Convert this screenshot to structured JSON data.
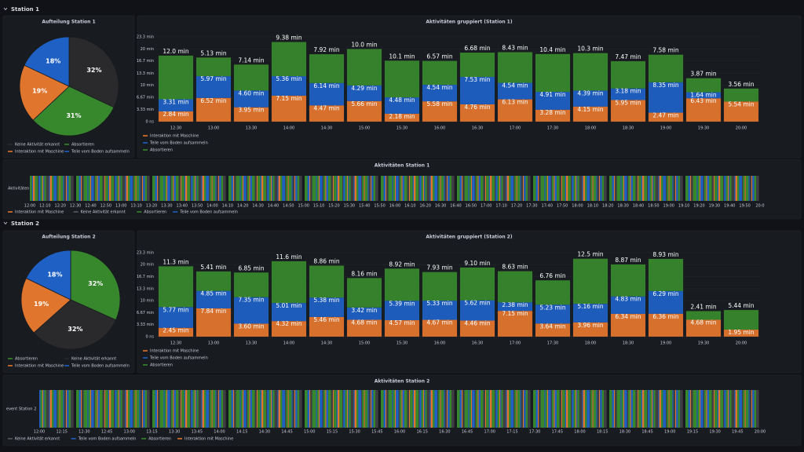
{
  "sections": [
    {
      "title": "Station 1",
      "pie": {
        "type": "pie",
        "title": "Aufteilung Station 1",
        "categories": [
          "Keine Aktivität erkannt",
          "Absortieren",
          "Interaktion mit Maschine",
          "Teile vom Boden aufsammeln"
        ],
        "values": [
          32,
          31,
          19,
          18
        ],
        "value_labels": [
          "32%",
          "31%",
          "19%",
          "18%"
        ],
        "colors": [
          "#2a2a2d",
          "#37872d",
          "#e0752d",
          "#1f60c4"
        ]
      },
      "bar": {
        "type": "bar",
        "stacked": true,
        "title": "Aktivitäten gruppiert (Station 1)",
        "categories": [
          "12:30",
          "13:00",
          "13:30",
          "14:00",
          "14:30",
          "15:00",
          "15:30",
          "16:00",
          "16:30",
          "17:00",
          "17:30",
          "18:00",
          "18:30",
          "19:00",
          "19:30",
          "20:00"
        ],
        "ylim": [
          0,
          23.3
        ],
        "yticks": [
          {
            "value": 0,
            "label": "0 ns"
          },
          {
            "value": 3.33,
            "label": "3.33 min"
          },
          {
            "value": 6.67,
            "label": "6.67 min"
          },
          {
            "value": 10,
            "label": "10 min"
          },
          {
            "value": 13.3,
            "label": "13.3 min"
          },
          {
            "value": 16.7,
            "label": "16.7 min"
          },
          {
            "value": 20,
            "label": "20 min"
          },
          {
            "value": 23.3,
            "label": "23.3 min"
          }
        ],
        "series": [
          {
            "name": "Interaktion mit Maschine",
            "color": "#e0752d",
            "values": [
              2.84,
              6.52,
              3.95,
              7.15,
              4.47,
              5.66,
              2.18,
              5.58,
              4.76,
              6.13,
              3.28,
              4.15,
              5.95,
              2.47,
              6.43,
              5.54
            ],
            "value_labels": [
              "2.84 min",
              "6.52 min",
              "3.95 min",
              "7.15 min",
              "4.47 min",
              "5.66 min",
              "2.18 min",
              "5.58 min",
              "4.76 min",
              "6.13 min",
              "3.28 min",
              "4.15 min",
              "5.95 min",
              "2.47 min",
              "6.43 min",
              "5.54 min"
            ]
          },
          {
            "name": "Teile vom Boden aufsammeln",
            "color": "#1f60c4",
            "values": [
              3.31,
              5.97,
              4.6,
              5.36,
              6.14,
              4.29,
              4.48,
              4.54,
              7.53,
              4.54,
              4.91,
              4.39,
              3.18,
              8.35,
              1.64,
              null
            ],
            "value_labels": [
              "3.31 min",
              "5.97 min",
              "4.60 min",
              "5.36 min",
              "6.14 min",
              "4.29 min",
              "4.48 min",
              "4.54 min",
              "7.53 min",
              "4.54 min",
              "4.91 min",
              "4.39 min",
              "3.18 min",
              "8.35 min",
              "1.64 min",
              null
            ]
          },
          {
            "name": "Absortieren",
            "color": "#37872d",
            "values": [
              12.0,
              5.13,
              7.14,
              9.38,
              7.92,
              10.0,
              10.1,
              6.57,
              6.68,
              8.43,
              10.4,
              10.3,
              7.47,
              7.58,
              3.87,
              3.56
            ],
            "value_labels": [
              "12.0 min",
              "5.13 min",
              "7.14 min",
              "9.38 min",
              "7.92 min",
              "10.0 min",
              "10.1 min",
              "6.57 min",
              "6.68 min",
              "8.43 min",
              "10.4 min",
              "10.3 min",
              "7.47 min",
              "7.58 min",
              "3.87 min",
              "3.56 min"
            ]
          }
        ]
      },
      "timeline": {
        "type": "state-timeline",
        "title": "Aktivitäten Station 1",
        "row_label": "Aktivitäten",
        "x_labels": [
          "12:00",
          "12:10",
          "12:20",
          "12:30",
          "12:40",
          "12:50",
          "13:00",
          "13:10",
          "13:20",
          "13:30",
          "13:40",
          "13:50",
          "14:00",
          "14:10",
          "14:20",
          "14:30",
          "14:40",
          "14:50",
          "15:00",
          "15:10",
          "15:20",
          "15:30",
          "15:40",
          "15:50",
          "16:00",
          "16:10",
          "16:20",
          "16:30",
          "16:40",
          "16:50",
          "17:00",
          "17:10",
          "17:20",
          "17:30",
          "17:40",
          "17:50",
          "18:00",
          "18:10",
          "18:20",
          "18:30",
          "18:40",
          "18:50",
          "19:00",
          "19:10",
          "19:20",
          "19:30",
          "19:40",
          "19:50",
          "20:0"
        ],
        "legend": [
          {
            "name": "Interaktion mit Maschine",
            "color": "#e0752d"
          },
          {
            "name": "Keine Aktivität erkannt",
            "color": "#5a5a5e"
          },
          {
            "name": "Absortieren",
            "color": "#37872d"
          },
          {
            "name": "Teile vom Boden aufsammeln",
            "color": "#1f60c4"
          }
        ]
      }
    },
    {
      "title": "Station 2",
      "pie": {
        "type": "pie",
        "title": "Aufteilung Station 2",
        "categories": [
          "Absortieren",
          "Keine Aktivität erkannt",
          "Interaktion mit Maschine",
          "Teile vom Boden aufsammeln"
        ],
        "values": [
          32,
          32,
          19,
          18
        ],
        "value_labels": [
          "32%",
          "32%",
          "19%",
          "18%"
        ],
        "colors": [
          "#37872d",
          "#2a2a2d",
          "#e0752d",
          "#1f60c4"
        ]
      },
      "bar": {
        "type": "bar",
        "stacked": true,
        "title": "Aktivitäten gruppiert (Station 2)",
        "categories": [
          "12:30",
          "13:00",
          "13:30",
          "14:00",
          "14:30",
          "15:00",
          "15:30",
          "16:00",
          "16:30",
          "17:00",
          "17:30",
          "18:00",
          "18:30",
          "19:00",
          "19:30",
          "20:00"
        ],
        "ylim": [
          0,
          23.3
        ],
        "yticks": [
          {
            "value": 0,
            "label": "0 ns"
          },
          {
            "value": 3.33,
            "label": "3.33 min"
          },
          {
            "value": 6.67,
            "label": "6.67 min"
          },
          {
            "value": 10,
            "label": "10 min"
          },
          {
            "value": 13.3,
            "label": "13.3 min"
          },
          {
            "value": 16.7,
            "label": "16.7 min"
          },
          {
            "value": 20,
            "label": "20 min"
          },
          {
            "value": 23.3,
            "label": "23.3 min"
          }
        ],
        "series": [
          {
            "name": "Interaktion mit Maschine",
            "color": "#e0752d",
            "values": [
              2.45,
              7.84,
              3.6,
              4.32,
              5.46,
              4.68,
              4.57,
              4.67,
              4.46,
              7.15,
              3.64,
              3.96,
              6.34,
              6.36,
              4.68,
              1.95
            ],
            "value_labels": [
              "2.45 min",
              "7.84 min",
              "3.60 min",
              "4.32 min",
              "5.46 min",
              "4.68 min",
              "4.57 min",
              "4.67 min",
              "4.46 min",
              "7.15 min",
              "3.64 min",
              "3.96 min",
              "6.34 min",
              "6.36 min",
              "4.68 min",
              "1.95 min"
            ]
          },
          {
            "name": "Teile vom Boden aufsammeln",
            "color": "#1f60c4",
            "values": [
              5.77,
              4.85,
              7.35,
              5.01,
              5.38,
              3.42,
              5.39,
              5.33,
              5.62,
              2.38,
              5.23,
              5.16,
              4.83,
              6.29,
              null,
              null
            ],
            "value_labels": [
              "5.77 min",
              "4.85 min",
              "7.35 min",
              "5.01 min",
              "5.38 min",
              "3.42 min",
              "5.39 min",
              "5.33 min",
              "5.62 min",
              "2.38 min",
              "5.23 min",
              "5.16 min",
              "4.83 min",
              "6.29 min",
              null,
              null
            ]
          },
          {
            "name": "Absortieren",
            "color": "#37872d",
            "values": [
              11.3,
              5.41,
              6.85,
              11.6,
              8.86,
              8.16,
              8.92,
              7.93,
              9.1,
              8.63,
              6.76,
              12.5,
              8.87,
              8.93,
              2.41,
              5.44
            ],
            "value_labels": [
              "11.3 min",
              "5.41 min",
              "6.85 min",
              "11.6 min",
              "8.86 min",
              "8.16 min",
              "8.92 min",
              "7.93 min",
              "9.10 min",
              "8.63 min",
              "6.76 min",
              "12.5 min",
              "8.87 min",
              "8.93 min",
              "2.41 min",
              "5.44 min"
            ]
          }
        ]
      },
      "timeline": {
        "type": "state-timeline",
        "title": "Aktivitäten Station 2",
        "row_label": "event Station 2",
        "x_labels": [
          "12:00",
          "12:15",
          "12:30",
          "12:45",
          "13:00",
          "13:15",
          "13:30",
          "13:45",
          "14:00",
          "14:15",
          "14:30",
          "14:45",
          "15:00",
          "15:15",
          "15:30",
          "15:45",
          "16:00",
          "16:15",
          "16:30",
          "16:45",
          "17:00",
          "17:15",
          "17:30",
          "17:45",
          "18:00",
          "18:15",
          "18:30",
          "18:45",
          "19:00",
          "19:15",
          "19:30",
          "19:45",
          "20:00"
        ],
        "legend": [
          {
            "name": "Keine Aktivität erkannt",
            "color": "#5a5a5e"
          },
          {
            "name": "Teile vom Boden aufsammeln",
            "color": "#1f60c4"
          },
          {
            "name": "Absortieren",
            "color": "#37872d"
          },
          {
            "name": "Interaktion mit Maschine",
            "color": "#e0752d"
          }
        ]
      }
    }
  ]
}
